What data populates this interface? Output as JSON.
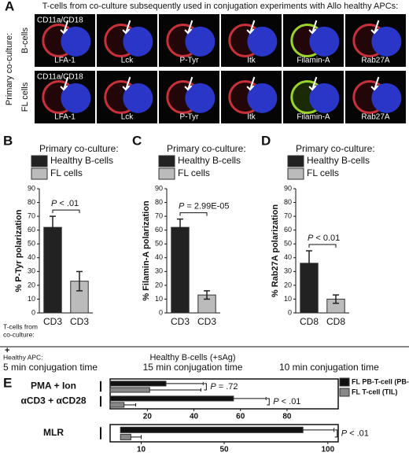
{
  "panel_a": {
    "label": "A",
    "title": "T-cells from co-culture subsequently used in conjugation experiments with Allo healthy APCs:",
    "side_label": "Primary co-culture:",
    "rows": [
      {
        "label": "B-cells",
        "cells": [
          {
            "top": "CD11a/CD18",
            "bottom": "LFA-1"
          },
          {
            "bottom": "Lck"
          },
          {
            "bottom": "P-Tyr"
          },
          {
            "bottom": "Itk"
          },
          {
            "bottom": "Filamin-A"
          },
          {
            "bottom": "Rab27A"
          }
        ]
      },
      {
        "label": "FL cells",
        "cells": [
          {
            "top": "CD11a/CD18",
            "bottom": "LFA-1"
          },
          {
            "bottom": "Lck"
          },
          {
            "bottom": "P-Tyr"
          },
          {
            "bottom": "Itk"
          },
          {
            "bottom": "Filamin-A"
          },
          {
            "bottom": "Rab27A"
          }
        ]
      }
    ]
  },
  "footer": {
    "tcells_1": "T-cells from",
    "tcells_2": "co-culture:",
    "plus": "+",
    "apc": "Healthy APC:",
    "time_b": "5 min conjugation time",
    "bcells_sag": "Healthy B-cells (+sAg)",
    "time_c": "15 min conjugation time",
    "time_d": "10 min conjugation time"
  },
  "chart_data": [
    {
      "type": "bar",
      "panel": "B",
      "title": "Primary co-culture:",
      "y_label": "% P-Tyr polarization",
      "categories": [
        "CD3",
        "CD3"
      ],
      "values": [
        62,
        23
      ],
      "errors": [
        8,
        7
      ],
      "colors": [
        "#222222",
        "#bbbbbb"
      ],
      "legend": [
        "Healthy B-cells",
        "FL cells"
      ],
      "ylim": [
        0,
        90
      ],
      "yticks": [
        0,
        10,
        20,
        30,
        40,
        50,
        60,
        70,
        80,
        90
      ],
      "p_symbol": "P",
      "p_value": "< .01"
    },
    {
      "type": "bar",
      "panel": "C",
      "title": "Primary co-culture:",
      "y_label": "% Filamin-A polarization",
      "categories": [
        "CD3",
        "CD3"
      ],
      "values": [
        62,
        13
      ],
      "errors": [
        6,
        3
      ],
      "colors": [
        "#222222",
        "#bbbbbb"
      ],
      "legend": [
        "Healthy B-cells",
        "FL cells"
      ],
      "ylim": [
        0,
        90
      ],
      "yticks": [
        0,
        10,
        20,
        30,
        40,
        50,
        60,
        70,
        80,
        90
      ],
      "p_symbol": "P",
      "p_value": "= 2.99E-05"
    },
    {
      "type": "bar",
      "panel": "D",
      "title": "Primary co-culture:",
      "y_label": "% Rab27A polarization",
      "categories": [
        "CD8",
        "CD8"
      ],
      "values": [
        36,
        10
      ],
      "errors": [
        9,
        3
      ],
      "colors": [
        "#222222",
        "#bbbbbb"
      ],
      "legend": [
        "Healthy B-cells",
        "FL cells"
      ],
      "ylim": [
        0,
        90
      ],
      "yticks": [
        0,
        10,
        20,
        30,
        40,
        50,
        60,
        70,
        80,
        90
      ],
      "p_symbol": "P",
      "p_value": "< 0.01"
    },
    {
      "type": "hbar",
      "panel": "E",
      "categories": [
        "PMA + Ion",
        "αCD3 + αCD28"
      ],
      "series": [
        {
          "name": "FL PB-T-cell (PB-T)",
          "color": "#111111",
          "values": [
            28,
            57
          ],
          "errors": [
            16,
            14
          ]
        },
        {
          "name": "FL T-cell (TIL)",
          "color": "#888888",
          "values": [
            21,
            10
          ],
          "errors": [
            22,
            5
          ]
        }
      ],
      "xlim": [
        4,
        102
      ],
      "xticks": [
        20,
        40,
        60,
        80
      ],
      "p_annotations": [
        {
          "symbol": "P",
          "value": "= .72"
        },
        {
          "symbol": "P",
          "value": "< .01"
        }
      ]
    },
    {
      "type": "hbar",
      "categories": [
        "MLR"
      ],
      "series": [
        {
          "color": "#111111",
          "values": [
            88
          ],
          "errors": [
            15
          ]
        },
        {
          "color": "#888888",
          "values": [
            5
          ],
          "errors": [
            5
          ]
        }
      ],
      "xlim": [
        -5,
        105
      ],
      "xticks": [
        10,
        50,
        100
      ],
      "p_annotations": [
        {
          "symbol": "P",
          "value": "< .01"
        }
      ]
    }
  ]
}
